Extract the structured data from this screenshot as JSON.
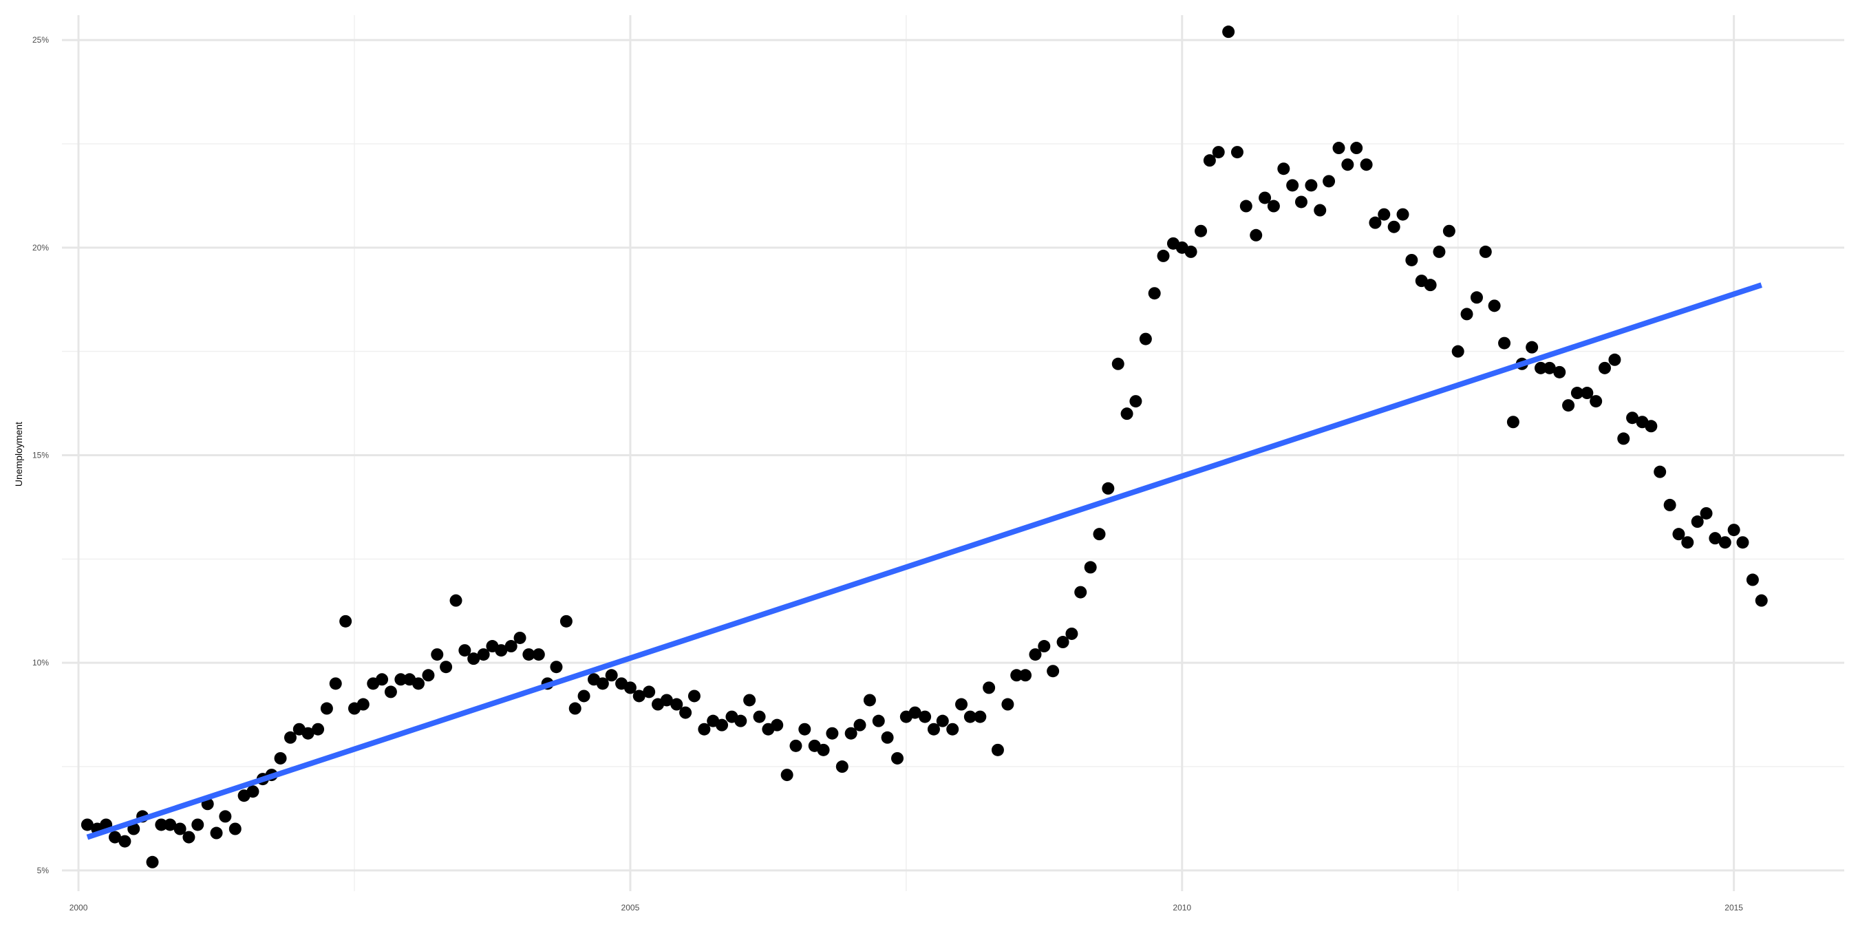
{
  "chart_data": {
    "type": "scatter",
    "title": "",
    "xlabel": "",
    "ylabel": "Unemployment",
    "xlim": [
      1999.85,
      2016.0
    ],
    "ylim": [
      4.5,
      25.6
    ],
    "x_ticks": [
      2000,
      2005,
      2010,
      2015
    ],
    "x_tick_labels": [
      "2000",
      "2005",
      "2010",
      "2015"
    ],
    "x_minor_ticks": [
      2002.5,
      2007.5,
      2012.5
    ],
    "y_ticks": [
      5,
      10,
      15,
      20,
      25
    ],
    "y_tick_labels": [
      "5%",
      "10%",
      "15%",
      "20%",
      "25%"
    ],
    "y_minor_ticks": [
      7.5,
      12.5,
      17.5,
      22.5
    ],
    "grid": true,
    "legend": "none",
    "point_color": "#000000",
    "trend_color": "#3366ff",
    "series": [
      {
        "values": [
          [
            2000.08,
            6.1
          ],
          [
            2000.17,
            6.0
          ],
          [
            2000.25,
            6.1
          ],
          [
            2000.33,
            5.8
          ],
          [
            2000.42,
            5.7
          ],
          [
            2000.5,
            6.0
          ],
          [
            2000.58,
            6.3
          ],
          [
            2000.67,
            5.2
          ],
          [
            2000.75,
            6.1
          ],
          [
            2000.83,
            6.1
          ],
          [
            2000.92,
            6.0
          ],
          [
            2001.0,
            5.8
          ],
          [
            2001.08,
            6.1
          ],
          [
            2001.17,
            6.6
          ],
          [
            2001.25,
            5.9
          ],
          [
            2001.33,
            6.3
          ],
          [
            2001.42,
            6.0
          ],
          [
            2001.5,
            6.8
          ],
          [
            2001.58,
            6.9
          ],
          [
            2001.67,
            7.2
          ],
          [
            2001.75,
            7.3
          ],
          [
            2001.83,
            7.7
          ],
          [
            2001.92,
            8.2
          ],
          [
            2002.0,
            8.4
          ],
          [
            2002.08,
            8.3
          ],
          [
            2002.17,
            8.4
          ],
          [
            2002.25,
            8.9
          ],
          [
            2002.33,
            9.5
          ],
          [
            2002.42,
            11.0
          ],
          [
            2002.5,
            8.9
          ],
          [
            2002.58,
            9.0
          ],
          [
            2002.67,
            9.5
          ],
          [
            2002.75,
            9.6
          ],
          [
            2002.83,
            9.3
          ],
          [
            2002.92,
            9.6
          ],
          [
            2003.0,
            9.6
          ],
          [
            2003.08,
            9.5
          ],
          [
            2003.17,
            9.7
          ],
          [
            2003.25,
            10.2
          ],
          [
            2003.33,
            9.9
          ],
          [
            2003.42,
            11.5
          ],
          [
            2003.5,
            10.3
          ],
          [
            2003.58,
            10.1
          ],
          [
            2003.67,
            10.2
          ],
          [
            2003.75,
            10.4
          ],
          [
            2003.83,
            10.3
          ],
          [
            2003.92,
            10.4
          ],
          [
            2004.0,
            10.6
          ],
          [
            2004.08,
            10.2
          ],
          [
            2004.17,
            10.2
          ],
          [
            2004.25,
            9.5
          ],
          [
            2004.33,
            9.9
          ],
          [
            2004.42,
            11.0
          ],
          [
            2004.5,
            8.9
          ],
          [
            2004.58,
            9.2
          ],
          [
            2004.67,
            9.6
          ],
          [
            2004.75,
            9.5
          ],
          [
            2004.83,
            9.7
          ],
          [
            2004.92,
            9.5
          ],
          [
            2005.0,
            9.4
          ],
          [
            2005.08,
            9.2
          ],
          [
            2005.17,
            9.3
          ],
          [
            2005.25,
            9.0
          ],
          [
            2005.33,
            9.1
          ],
          [
            2005.42,
            9.0
          ],
          [
            2005.5,
            8.8
          ],
          [
            2005.58,
            9.2
          ],
          [
            2005.67,
            8.4
          ],
          [
            2005.75,
            8.6
          ],
          [
            2005.83,
            8.5
          ],
          [
            2005.92,
            8.7
          ],
          [
            2006.0,
            8.6
          ],
          [
            2006.08,
            9.1
          ],
          [
            2006.17,
            8.7
          ],
          [
            2006.25,
            8.4
          ],
          [
            2006.33,
            8.5
          ],
          [
            2006.42,
            7.3
          ],
          [
            2006.5,
            8.0
          ],
          [
            2006.58,
            8.4
          ],
          [
            2006.67,
            8.0
          ],
          [
            2006.75,
            7.9
          ],
          [
            2006.83,
            8.3
          ],
          [
            2006.92,
            7.5
          ],
          [
            2007.0,
            8.3
          ],
          [
            2007.08,
            8.5
          ],
          [
            2007.17,
            9.1
          ],
          [
            2007.25,
            8.6
          ],
          [
            2007.33,
            8.2
          ],
          [
            2007.42,
            7.7
          ],
          [
            2007.5,
            8.7
          ],
          [
            2007.58,
            8.8
          ],
          [
            2007.67,
            8.7
          ],
          [
            2007.75,
            8.4
          ],
          [
            2007.83,
            8.6
          ],
          [
            2007.92,
            8.4
          ],
          [
            2008.0,
            9.0
          ],
          [
            2008.08,
            8.7
          ],
          [
            2008.17,
            8.7
          ],
          [
            2008.25,
            9.4
          ],
          [
            2008.33,
            7.9
          ],
          [
            2008.42,
            9.0
          ],
          [
            2008.5,
            9.7
          ],
          [
            2008.58,
            9.7
          ],
          [
            2008.67,
            10.2
          ],
          [
            2008.75,
            10.4
          ],
          [
            2008.83,
            9.8
          ],
          [
            2008.92,
            10.5
          ],
          [
            2009.0,
            10.7
          ],
          [
            2009.08,
            11.7
          ],
          [
            2009.17,
            12.3
          ],
          [
            2009.25,
            13.1
          ],
          [
            2009.33,
            14.2
          ],
          [
            2009.42,
            17.2
          ],
          [
            2009.5,
            16.0
          ],
          [
            2009.58,
            16.3
          ],
          [
            2009.67,
            17.8
          ],
          [
            2009.75,
            18.9
          ],
          [
            2009.83,
            19.8
          ],
          [
            2009.92,
            20.1
          ],
          [
            2010.0,
            20.0
          ],
          [
            2010.08,
            19.9
          ],
          [
            2010.17,
            20.4
          ],
          [
            2010.25,
            22.1
          ],
          [
            2010.33,
            22.3
          ],
          [
            2010.42,
            25.2
          ],
          [
            2010.5,
            22.3
          ],
          [
            2010.58,
            21.0
          ],
          [
            2010.67,
            20.3
          ],
          [
            2010.75,
            21.2
          ],
          [
            2010.83,
            21.0
          ],
          [
            2010.92,
            21.9
          ],
          [
            2011.0,
            21.5
          ],
          [
            2011.08,
            21.1
          ],
          [
            2011.17,
            21.5
          ],
          [
            2011.25,
            20.9
          ],
          [
            2011.33,
            21.6
          ],
          [
            2011.42,
            22.4
          ],
          [
            2011.5,
            22.0
          ],
          [
            2011.58,
            22.4
          ],
          [
            2011.67,
            22.0
          ],
          [
            2011.75,
            20.6
          ],
          [
            2011.83,
            20.8
          ],
          [
            2011.92,
            20.5
          ],
          [
            2012.0,
            20.8
          ],
          [
            2012.08,
            19.7
          ],
          [
            2012.17,
            19.2
          ],
          [
            2012.25,
            19.1
          ],
          [
            2012.33,
            19.9
          ],
          [
            2012.42,
            20.4
          ],
          [
            2012.5,
            17.5
          ],
          [
            2012.58,
            18.4
          ],
          [
            2012.67,
            18.8
          ],
          [
            2012.75,
            19.9
          ],
          [
            2012.83,
            18.6
          ],
          [
            2012.92,
            17.7
          ],
          [
            2013.0,
            15.8
          ],
          [
            2013.08,
            17.2
          ],
          [
            2013.17,
            17.6
          ],
          [
            2013.25,
            17.1
          ],
          [
            2013.33,
            17.1
          ],
          [
            2013.42,
            17.0
          ],
          [
            2013.5,
            16.2
          ],
          [
            2013.58,
            16.5
          ],
          [
            2013.67,
            16.5
          ],
          [
            2013.75,
            16.3
          ],
          [
            2013.83,
            17.1
          ],
          [
            2013.92,
            17.3
          ],
          [
            2014.0,
            15.4
          ],
          [
            2014.08,
            15.9
          ],
          [
            2014.17,
            15.8
          ],
          [
            2014.25,
            15.7
          ],
          [
            2014.33,
            14.6
          ],
          [
            2014.42,
            13.8
          ],
          [
            2014.5,
            13.1
          ],
          [
            2014.58,
            12.9
          ],
          [
            2014.67,
            13.4
          ],
          [
            2014.75,
            13.6
          ],
          [
            2014.83,
            13.0
          ],
          [
            2014.92,
            12.9
          ],
          [
            2015.0,
            13.2
          ],
          [
            2015.08,
            12.9
          ],
          [
            2015.17,
            12.0
          ],
          [
            2015.25,
            11.5
          ]
        ]
      }
    ],
    "trend_line": {
      "x": [
        2000.08,
        2015.25
      ],
      "y": [
        5.8,
        19.1
      ]
    }
  }
}
